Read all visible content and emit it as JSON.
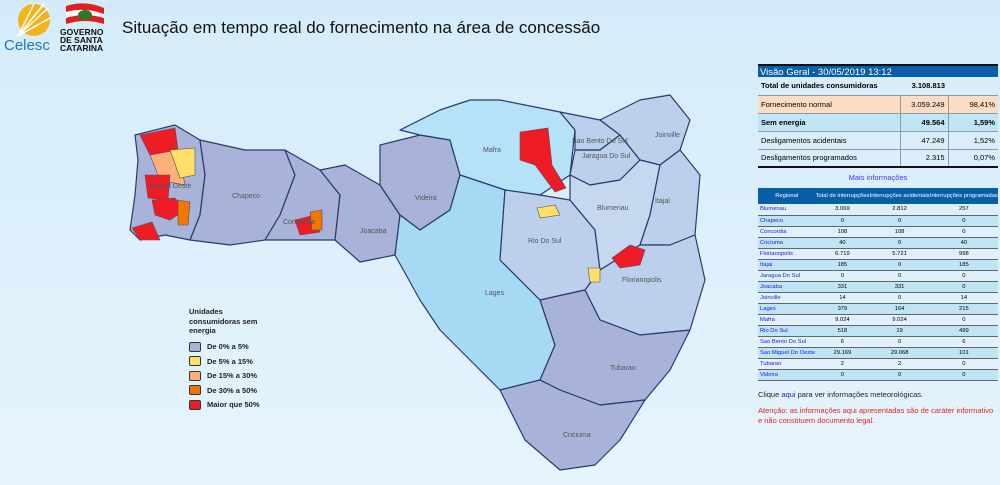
{
  "header": {
    "title": "Situação em tempo real do fornecimento na área de concessão",
    "logo_celesc": "Celesc",
    "logo_gov": "GOVERNO DE SANTA CATARINA"
  },
  "colors": {
    "0-5": "#a9b3d9",
    "5-15": "#ffe066",
    "15-30": "#ffb07a",
    "30-50": "#f07800",
    "50+": "#ee1c25",
    "light_region": "#a6daf4",
    "header_blue": "#0a5ea8"
  },
  "map": {
    "regions": [
      "Miguel Oeste",
      "Chapeco",
      "Concordia",
      "Joacaba",
      "Videira",
      "Mafra",
      "Sao Bento Do Sul",
      "Jaragua Do Sul",
      "Joinville",
      "Blumenau",
      "Itajai",
      "Rio Do Sul",
      "Lages",
      "Florianopolis",
      "Tubarao",
      "Criciuma"
    ]
  },
  "legend": {
    "title": "Unidades consumidoras sem energia",
    "items": [
      "De 0% a 5%",
      "De 5% a 15%",
      "De 15% a 30%",
      "De 30% a 50%",
      "Maior que 50%"
    ]
  },
  "overview": {
    "title": "Visão Geral - 30/05/2019 13:12",
    "rows": [
      {
        "label": "Total de unidades consumidoras",
        "value": "3.108.813",
        "pct": ""
      },
      {
        "label": "Fornecimento normal",
        "value": "3.059.249",
        "pct": "98,41%"
      },
      {
        "label": "Sem energia",
        "value": "49.564",
        "pct": "1,59%"
      },
      {
        "label": "Desligamentos acidentais",
        "value": "47.249",
        "pct": "1,52%"
      },
      {
        "label": "Desligamentos programados",
        "value": "2.315",
        "pct": "0,07%"
      }
    ],
    "more_info": "Mais informações"
  },
  "regional_table": {
    "headers": [
      "Regional",
      "Total de interrupções",
      "Interrupções acidentais",
      "Interrupções programadas"
    ],
    "rows": [
      [
        "Blumenau",
        "3.069",
        "2.812",
        "257"
      ],
      [
        "Chapeco",
        "0",
        "0",
        "0"
      ],
      [
        "Concordia",
        "108",
        "108",
        "0"
      ],
      [
        "Criciuma",
        "40",
        "0",
        "40"
      ],
      [
        "Florianopolis",
        "6.719",
        "5.721",
        "998"
      ],
      [
        "Itajai",
        "185",
        "0",
        "185"
      ],
      [
        "Jaragua Do Sul",
        "0",
        "0",
        "0"
      ],
      [
        "Joacaba",
        "331",
        "331",
        "0"
      ],
      [
        "Joinville",
        "14",
        "0",
        "14"
      ],
      [
        "Lages",
        "379",
        "164",
        "215"
      ],
      [
        "Mafra",
        "9.024",
        "9.024",
        "0"
      ],
      [
        "Rio Do Sul",
        "518",
        "19",
        "499"
      ],
      [
        "Sao Bento Do Sul",
        "6",
        "0",
        "6"
      ],
      [
        "Sao Miguel Do Oeste",
        "29.169",
        "29.068",
        "101"
      ],
      [
        "Tubarao",
        "2",
        "2",
        "0"
      ],
      [
        "Videira",
        "0",
        "0",
        "0"
      ]
    ]
  },
  "footer": {
    "weather_pre": "Clique ",
    "weather_link": "aqui",
    "weather_post": " para ver informações meteorológicas.",
    "warning": "Atenção: as informações aqui apresentadas são de caráter informativo e não constituem documento legal."
  }
}
